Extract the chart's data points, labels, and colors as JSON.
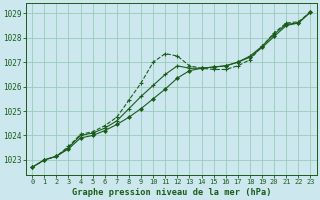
{
  "title": "Graphe pression niveau de la mer (hPa)",
  "background_color": "#cce8ee",
  "grid_color": "#99ccbb",
  "line_color": "#1a5c1a",
  "xlim": [
    -0.5,
    23.5
  ],
  "ylim": [
    1022.4,
    1029.4
  ],
  "xticks": [
    0,
    1,
    2,
    3,
    4,
    5,
    6,
    7,
    8,
    9,
    10,
    11,
    12,
    13,
    14,
    15,
    16,
    17,
    18,
    19,
    20,
    21,
    22,
    23
  ],
  "yticks": [
    1023,
    1024,
    1025,
    1026,
    1027,
    1028,
    1029
  ],
  "series1": {
    "x": [
      0,
      1,
      2,
      3,
      4,
      5,
      6,
      7,
      8,
      9,
      10,
      11,
      12,
      13,
      14,
      15,
      16,
      17,
      18,
      19,
      20,
      21,
      22,
      23
    ],
    "y": [
      1022.7,
      1023.0,
      1023.15,
      1023.55,
      1024.05,
      1024.15,
      1024.4,
      1024.75,
      1025.45,
      1026.15,
      1027.0,
      1027.35,
      1027.25,
      1026.85,
      1026.75,
      1026.7,
      1026.7,
      1026.85,
      1027.1,
      1027.65,
      1028.2,
      1028.6,
      1028.65,
      1029.05
    ],
    "style": "dotted"
  },
  "series2": {
    "x": [
      0,
      1,
      2,
      3,
      4,
      5,
      6,
      7,
      8,
      9,
      10,
      11,
      12,
      13,
      14,
      15,
      16,
      17,
      18,
      19,
      20,
      21,
      22,
      23
    ],
    "y": [
      1022.7,
      1023.0,
      1023.15,
      1023.45,
      1023.9,
      1024.0,
      1024.2,
      1024.45,
      1024.75,
      1025.1,
      1025.5,
      1025.9,
      1026.35,
      1026.65,
      1026.75,
      1026.8,
      1026.85,
      1027.0,
      1027.2,
      1027.6,
      1028.05,
      1028.5,
      1028.6,
      1029.05
    ],
    "style": "solid"
  },
  "series3": {
    "x": [
      0,
      1,
      2,
      3,
      4,
      5,
      6,
      7,
      8,
      9,
      10,
      11,
      12,
      13,
      14,
      15,
      16,
      17,
      18,
      19,
      20,
      21,
      22,
      23
    ],
    "y": [
      1022.7,
      1023.0,
      1023.15,
      1023.5,
      1024.0,
      1024.1,
      1024.3,
      1024.6,
      1025.1,
      1025.6,
      1026.05,
      1026.5,
      1026.85,
      1026.75,
      1026.75,
      1026.8,
      1026.85,
      1027.0,
      1027.25,
      1027.65,
      1028.15,
      1028.55,
      1028.6,
      1029.05
    ],
    "style": "solid"
  }
}
